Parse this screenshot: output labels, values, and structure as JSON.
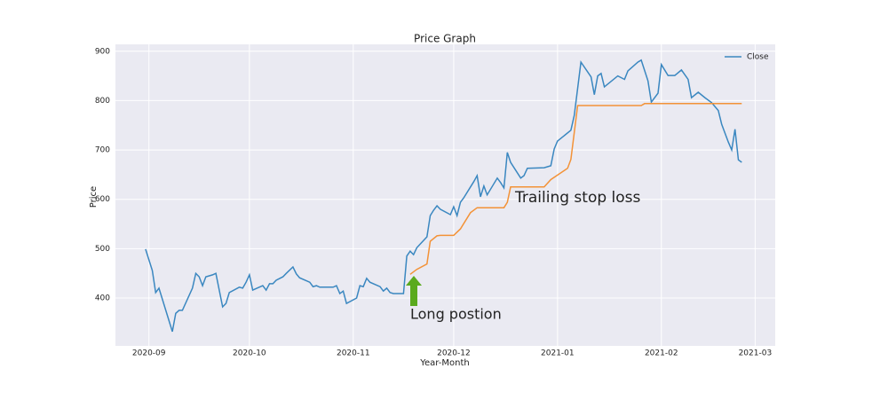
{
  "chart_data": {
    "type": "line",
    "title": "Price Graph",
    "x_label": "Year-Month",
    "y_label": "Price",
    "xlim": [
      "2020-08-22",
      "2021-03-07"
    ],
    "ylim": [
      303,
      914
    ],
    "xticks": [
      {
        "value": "2020-09-01",
        "label": "2020-09"
      },
      {
        "value": "2020-10-01",
        "label": "2020-10"
      },
      {
        "value": "2020-11-01",
        "label": "2020-11"
      },
      {
        "value": "2020-12-01",
        "label": "2020-12"
      },
      {
        "value": "2021-01-01",
        "label": "2021-01"
      },
      {
        "value": "2021-02-01",
        "label": "2021-02"
      },
      {
        "value": "2021-03-01",
        "label": "2021-03"
      }
    ],
    "yticks": [
      400,
      500,
      600,
      700,
      800,
      900
    ],
    "grid": true,
    "legend": "upper right",
    "series": [
      {
        "name": "Close",
        "color": "#3a87c0",
        "x": [
          "2020-08-31",
          "2020-09-02",
          "2020-09-03",
          "2020-09-04",
          "2020-09-08",
          "2020-09-09",
          "2020-09-10",
          "2020-09-11",
          "2020-09-14",
          "2020-09-15",
          "2020-09-16",
          "2020-09-17",
          "2020-09-18",
          "2020-09-20",
          "2020-09-21",
          "2020-09-23",
          "2020-09-24",
          "2020-09-25",
          "2020-09-28",
          "2020-09-29",
          "2020-09-30",
          "2020-10-01",
          "2020-10-02",
          "2020-10-05",
          "2020-10-06",
          "2020-10-07",
          "2020-10-08",
          "2020-10-09",
          "2020-10-11",
          "2020-10-12",
          "2020-10-14",
          "2020-10-15",
          "2020-10-16",
          "2020-10-19",
          "2020-10-20",
          "2020-10-21",
          "2020-10-22",
          "2020-10-23",
          "2020-10-26",
          "2020-10-27",
          "2020-10-28",
          "2020-10-29",
          "2020-10-30",
          "2020-11-02",
          "2020-11-03",
          "2020-11-04",
          "2020-11-05",
          "2020-11-06",
          "2020-11-09",
          "2020-11-10",
          "2020-11-11",
          "2020-11-12",
          "2020-11-13",
          "2020-11-16",
          "2020-11-17",
          "2020-11-18",
          "2020-11-19",
          "2020-11-20",
          "2020-11-23",
          "2020-11-24",
          "2020-11-25",
          "2020-11-26",
          "2020-11-27",
          "2020-11-30",
          "2020-12-01",
          "2020-12-02",
          "2020-12-03",
          "2020-12-04",
          "2020-12-07",
          "2020-12-08",
          "2020-12-09",
          "2020-12-10",
          "2020-12-11",
          "2020-12-14",
          "2020-12-15",
          "2020-12-16",
          "2020-12-17",
          "2020-12-18",
          "2020-12-21",
          "2020-12-22",
          "2020-12-23",
          "2020-12-28",
          "2020-12-30",
          "2020-12-31",
          "2021-01-01",
          "2021-01-05",
          "2021-01-06",
          "2021-01-08",
          "2021-01-11",
          "2021-01-12",
          "2021-01-13",
          "2021-01-14",
          "2021-01-15",
          "2021-01-19",
          "2021-01-21",
          "2021-01-22",
          "2021-01-25",
          "2021-01-26",
          "2021-01-28",
          "2021-01-29",
          "2021-01-31",
          "2021-02-01",
          "2021-02-03",
          "2021-02-05",
          "2021-02-07",
          "2021-02-09",
          "2021-02-10",
          "2021-02-12",
          "2021-02-14",
          "2021-02-16",
          "2021-02-18",
          "2021-02-19",
          "2021-02-21",
          "2021-02-22",
          "2021-02-23",
          "2021-02-24",
          "2021-02-25"
        ],
        "values": [
          499,
          456,
          411,
          420,
          332,
          369,
          375,
          375,
          420,
          450,
          443,
          425,
          443,
          447,
          450,
          382,
          389,
          411,
          422,
          420,
          432,
          447,
          416,
          425,
          416,
          429,
          429,
          436,
          443,
          450,
          463,
          449,
          441,
          432,
          423,
          425,
          422,
          422,
          422,
          425,
          409,
          414,
          389,
          400,
          425,
          423,
          440,
          432,
          423,
          414,
          420,
          411,
          409,
          409,
          485,
          495,
          488,
          502,
          524,
          567,
          578,
          587,
          580,
          569,
          585,
          567,
          594,
          603,
          636,
          648,
          605,
          627,
          609,
          643,
          634,
          623,
          695,
          675,
          643,
          648,
          663,
          664,
          668,
          702,
          718,
          740,
          770,
          878,
          848,
          812,
          850,
          855,
          828,
          850,
          843,
          860,
          878,
          882,
          840,
          797,
          815,
          873,
          851,
          851,
          862,
          843,
          806,
          817,
          806,
          796,
          780,
          752,
          716,
          700,
          742,
          680,
          675
        ]
      },
      {
        "color": "#f39237",
        "x": [
          "2020-11-18",
          "2020-11-20",
          "2020-11-23",
          "2020-11-24",
          "2020-11-26",
          "2020-11-27",
          "2020-12-01",
          "2020-12-03",
          "2020-12-06",
          "2020-12-08",
          "2020-12-16",
          "2020-12-17",
          "2020-12-18",
          "2020-12-28",
          "2020-12-30",
          "2021-01-04",
          "2021-01-05",
          "2021-01-07",
          "2021-01-26",
          "2021-01-27",
          "2021-02-25"
        ],
        "values": [
          448,
          458,
          469,
          515,
          526,
          527,
          527,
          540,
          573,
          583,
          583,
          594,
          625,
          625,
          640,
          663,
          681,
          790,
          790,
          794,
          794
        ]
      }
    ],
    "annotations": [
      {
        "text": "Trailing stop loss",
        "color": "#f39237"
      },
      {
        "text": "Long postion",
        "color": "#5aaa1e"
      }
    ]
  }
}
